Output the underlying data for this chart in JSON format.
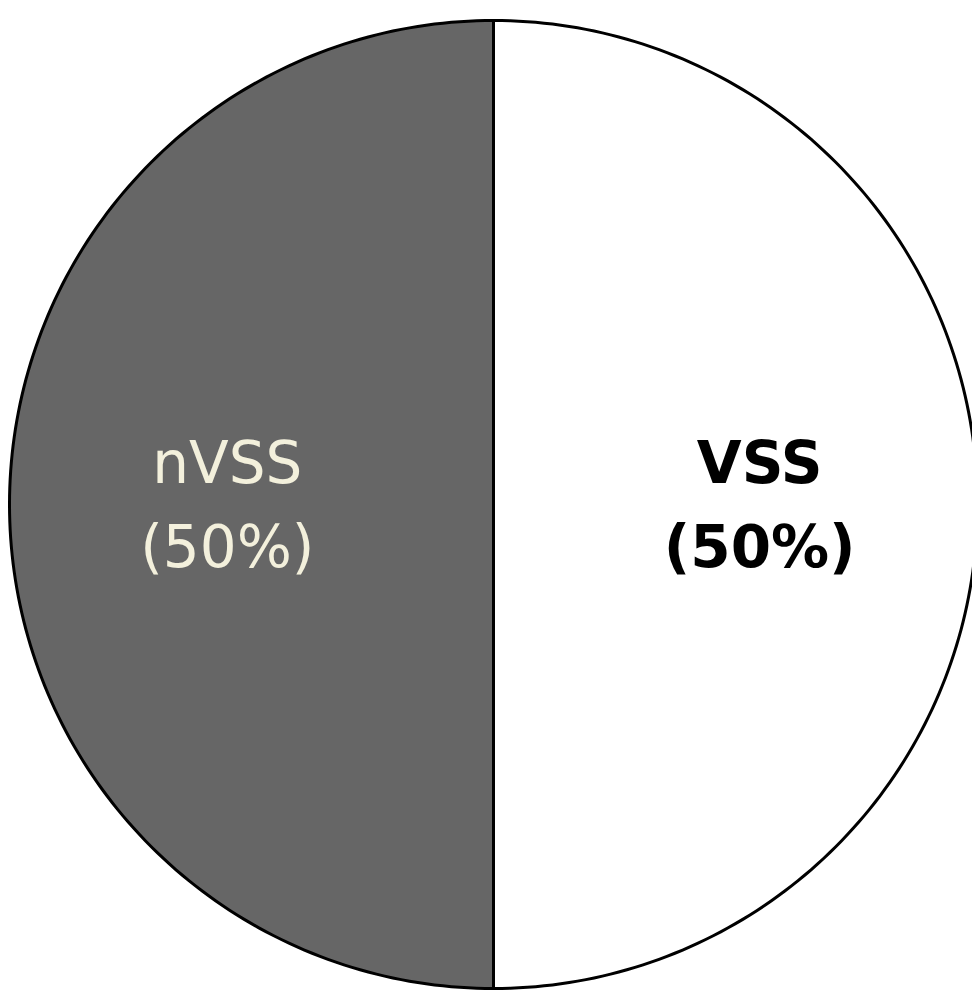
{
  "chart_data": {
    "type": "pie",
    "categories": [
      "VSS",
      "nVSS"
    ],
    "values": [
      50,
      50
    ],
    "colors": [
      "#ffffff",
      "#666666"
    ],
    "value_labels": [
      "(50%)",
      "(50%)"
    ]
  }
}
